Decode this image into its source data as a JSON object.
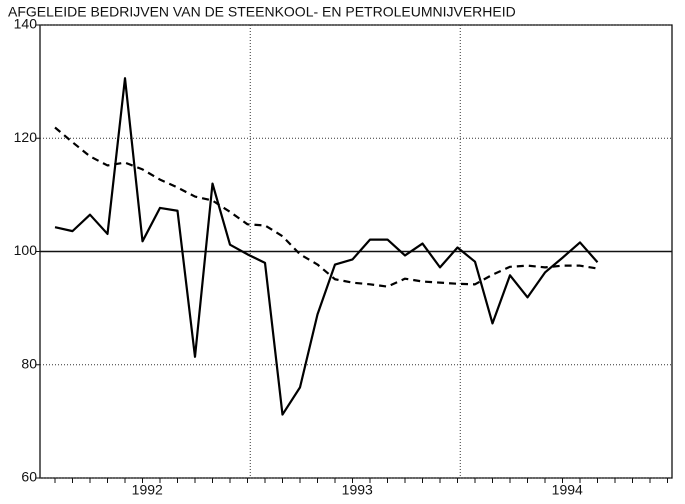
{
  "chart_data": {
    "type": "line",
    "title": "AFGELEIDE BEDRIJVEN VAN DE STEENKOOL- EN PETROLEUMNIJVERHEID",
    "categories": [
      null,
      null,
      null,
      null,
      null,
      "1992",
      null,
      null,
      null,
      null,
      null,
      null,
      null,
      null,
      null,
      null,
      null,
      "1993",
      null,
      null,
      null,
      null,
      null,
      null,
      null,
      null,
      null,
      null,
      null,
      "1994",
      null,
      null
    ],
    "series": [
      {
        "color": "#000000",
        "style": "solid",
        "values": [
          104.3,
          103.6,
          106.5,
          103.1,
          130.6,
          101.8,
          107.7,
          107.2,
          81.4,
          112,
          101.2,
          99.5,
          98,
          71.2,
          76,
          88.9,
          97.7,
          98.6,
          102.1,
          102.1,
          99.3,
          101.4,
          97.2,
          100.7,
          98.2,
          87.3,
          95.8,
          91.9,
          96.3,
          98.9,
          101.6,
          98.1
        ]
      },
      {
        "color": "#000000",
        "style": "dashed",
        "values": [
          121.9,
          119.3,
          116.8,
          115.2,
          115.7,
          114.5,
          112.7,
          111.3,
          109.7,
          109,
          107,
          104.8,
          104.6,
          102.7,
          99.5,
          97.7,
          95.1,
          94.5,
          94.2,
          93.8,
          95.2,
          94.7,
          94.5,
          94.3,
          94.2,
          95.9,
          97.3,
          97.5,
          97.2,
          97.5,
          97.5,
          97
        ]
      }
    ],
    "ylim": [
      60,
      140
    ],
    "yticks": [
      60,
      80,
      100,
      120,
      140
    ],
    "grid": true,
    "reference_line": 100
  }
}
